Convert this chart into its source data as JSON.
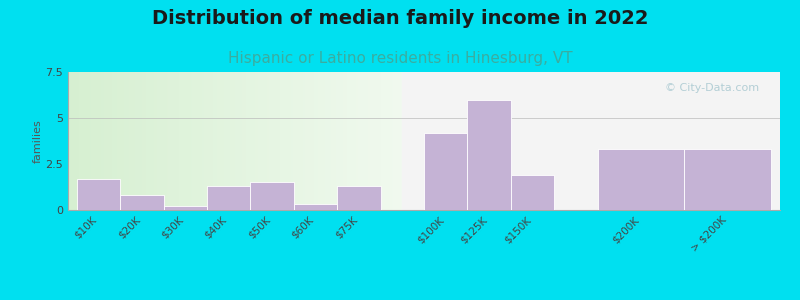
{
  "title": "Distribution of median family income in 2022",
  "subtitle": "Hispanic or Latino residents in Hinesburg, VT",
  "ylabel": "families",
  "categories": [
    "$10K",
    "$20K",
    "$30K",
    "$40K",
    "$50K",
    "$60K",
    "$75K",
    "$100K",
    "$125K",
    "$150K",
    "$200K",
    "> $200K"
  ],
  "values": [
    1.7,
    0.8,
    0.2,
    1.3,
    1.5,
    0.3,
    1.3,
    4.2,
    6.0,
    1.9,
    3.3,
    3.3
  ],
  "bar_color": "#c5b3d5",
  "bar_edge_color": "#ffffff",
  "ylim": [
    0,
    7.5
  ],
  "yticks": [
    0,
    2.5,
    5,
    7.5
  ],
  "background_outer": "#00e0f0",
  "title_fontsize": 14,
  "subtitle_fontsize": 11,
  "title_color": "#1a1a1a",
  "subtitle_color": "#3aada0",
  "watermark_text": "© City-Data.com",
  "watermark_color": "#a8c8d0",
  "tick_fontsize": 7.5,
  "ylabel_fontsize": 8,
  "groups": [
    {
      "indices": [
        0,
        1,
        2,
        3,
        4,
        5,
        6
      ],
      "x_start": 0
    },
    {
      "indices": [
        7,
        8,
        9
      ],
      "x_start": 8
    },
    {
      "indices": [
        10
      ],
      "x_start": 12
    },
    {
      "indices": [
        11
      ],
      "x_start": 14
    }
  ],
  "bar_positions": [
    0,
    1,
    2,
    3,
    4,
    5,
    6,
    8,
    9,
    10,
    12,
    14
  ],
  "bar_widths": [
    1,
    1,
    1,
    1,
    1,
    1,
    1,
    1,
    1,
    1,
    2,
    2
  ],
  "xlim": [
    -0.2,
    16.2
  ]
}
